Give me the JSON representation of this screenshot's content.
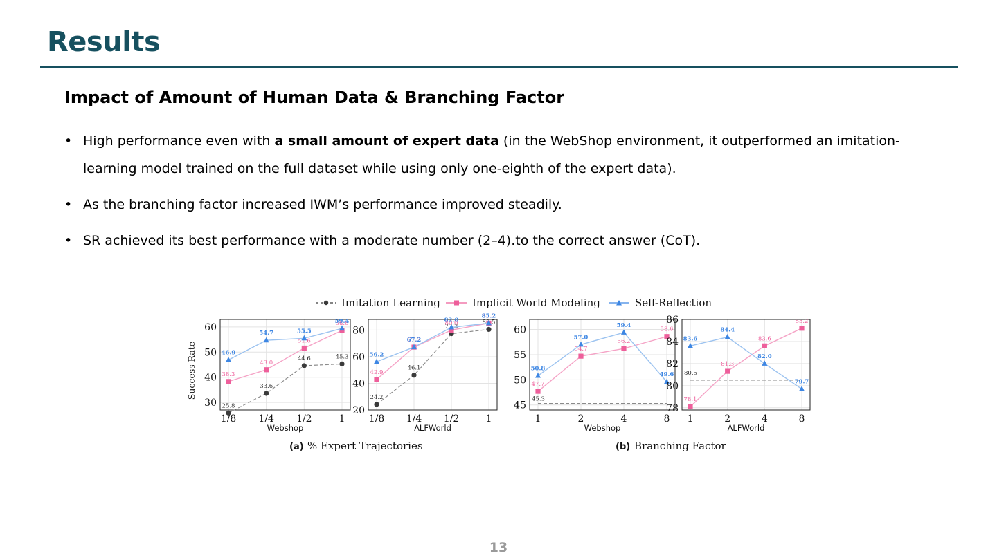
{
  "slide": {
    "title": "Results",
    "subtitle": "Impact of Amount of Human Data & Branching Factor",
    "bullets": [
      {
        "pre": "High performance even with ",
        "bold": "a small amount of expert data",
        "post": " (in the WebShop environment, it outperformed an imitation-learning model trained on the full dataset while using only one-eighth of the expert data)."
      },
      {
        "pre": "As the branching factor increased IWM’s performance improved steadily.",
        "bold": "",
        "post": ""
      },
      {
        "pre": "SR achieved its best performance with a moderate number (2–4).to the correct answer (CoT).",
        "bold": "",
        "post": ""
      }
    ],
    "bullet_symbol": "•",
    "page_number": "13"
  },
  "figure": {
    "legend": [
      "Imitation Learning",
      "Implicit World Modeling",
      "Self-Reflection"
    ],
    "series_colors": {
      "Imitation Learning": "#3a3a3a",
      "Implicit World Modeling": "#ee5f9b",
      "Self-Reflection": "#3d86e3"
    },
    "caption_a_label": "(a)",
    "caption_a_text": "% Expert Trajectories",
    "caption_b_label": "(b)",
    "caption_b_text": "Branching Factor",
    "ylabel": "Success Rate"
  },
  "chart_data": [
    {
      "type": "line",
      "xlabel": "Webshop",
      "categories": [
        "1/8",
        "1/4",
        "1/2",
        "1"
      ],
      "ylim": [
        27,
        63
      ],
      "yticks": [
        30,
        40,
        50,
        60
      ],
      "grid": true,
      "series": [
        {
          "name": "Imitation Learning",
          "values": [
            25.8,
            33.6,
            44.6,
            45.3
          ]
        },
        {
          "name": "Implicit World Modeling",
          "values": [
            38.3,
            43.0,
            51.6,
            58.6
          ]
        },
        {
          "name": "Self-Reflection",
          "values": [
            46.9,
            54.7,
            55.5,
            59.4
          ]
        }
      ]
    },
    {
      "type": "line",
      "xlabel": "ALFWorld",
      "categories": [
        "1/8",
        "1/4",
        "1/2",
        "1"
      ],
      "ylim": [
        20,
        88
      ],
      "yticks": [
        20,
        40,
        60,
        80
      ],
      "grid": true,
      "series": [
        {
          "name": "Imitation Learning",
          "values": [
            24.2,
            46.1,
            77.3,
            80.5
          ]
        },
        {
          "name": "Implicit World Modeling",
          "values": [
            42.9,
            67.2,
            80.0,
            85.2
          ]
        },
        {
          "name": "Self-Reflection",
          "values": [
            56.2,
            67.2,
            82.0,
            85.2
          ]
        }
      ]
    },
    {
      "type": "line",
      "xlabel": "Webshop",
      "categories": [
        "1",
        "2",
        "4",
        "8"
      ],
      "ylim": [
        44,
        62
      ],
      "yticks": [
        45,
        50,
        55,
        60
      ],
      "grid": true,
      "series": [
        {
          "name": "Imitation Learning",
          "values": [
            45.3,
            45.3,
            45.3,
            45.3
          ]
        },
        {
          "name": "Implicit World Modeling",
          "values": [
            47.7,
            54.7,
            56.2,
            58.6
          ]
        },
        {
          "name": "Self-Reflection",
          "values": [
            50.8,
            57.0,
            59.4,
            49.6
          ]
        }
      ]
    },
    {
      "type": "line",
      "xlabel": "ALFWorld",
      "categories": [
        "1",
        "2",
        "4",
        "8"
      ],
      "ylim": [
        77.8,
        86
      ],
      "yticks": [
        78,
        80,
        82,
        84,
        86
      ],
      "grid": true,
      "series": [
        {
          "name": "Imitation Learning",
          "values": [
            80.5,
            80.5,
            80.5,
            80.5
          ]
        },
        {
          "name": "Implicit World Modeling",
          "values": [
            78.1,
            81.3,
            83.6,
            85.2
          ]
        },
        {
          "name": "Self-Reflection",
          "values": [
            83.6,
            84.4,
            82.0,
            79.7
          ]
        }
      ]
    }
  ]
}
